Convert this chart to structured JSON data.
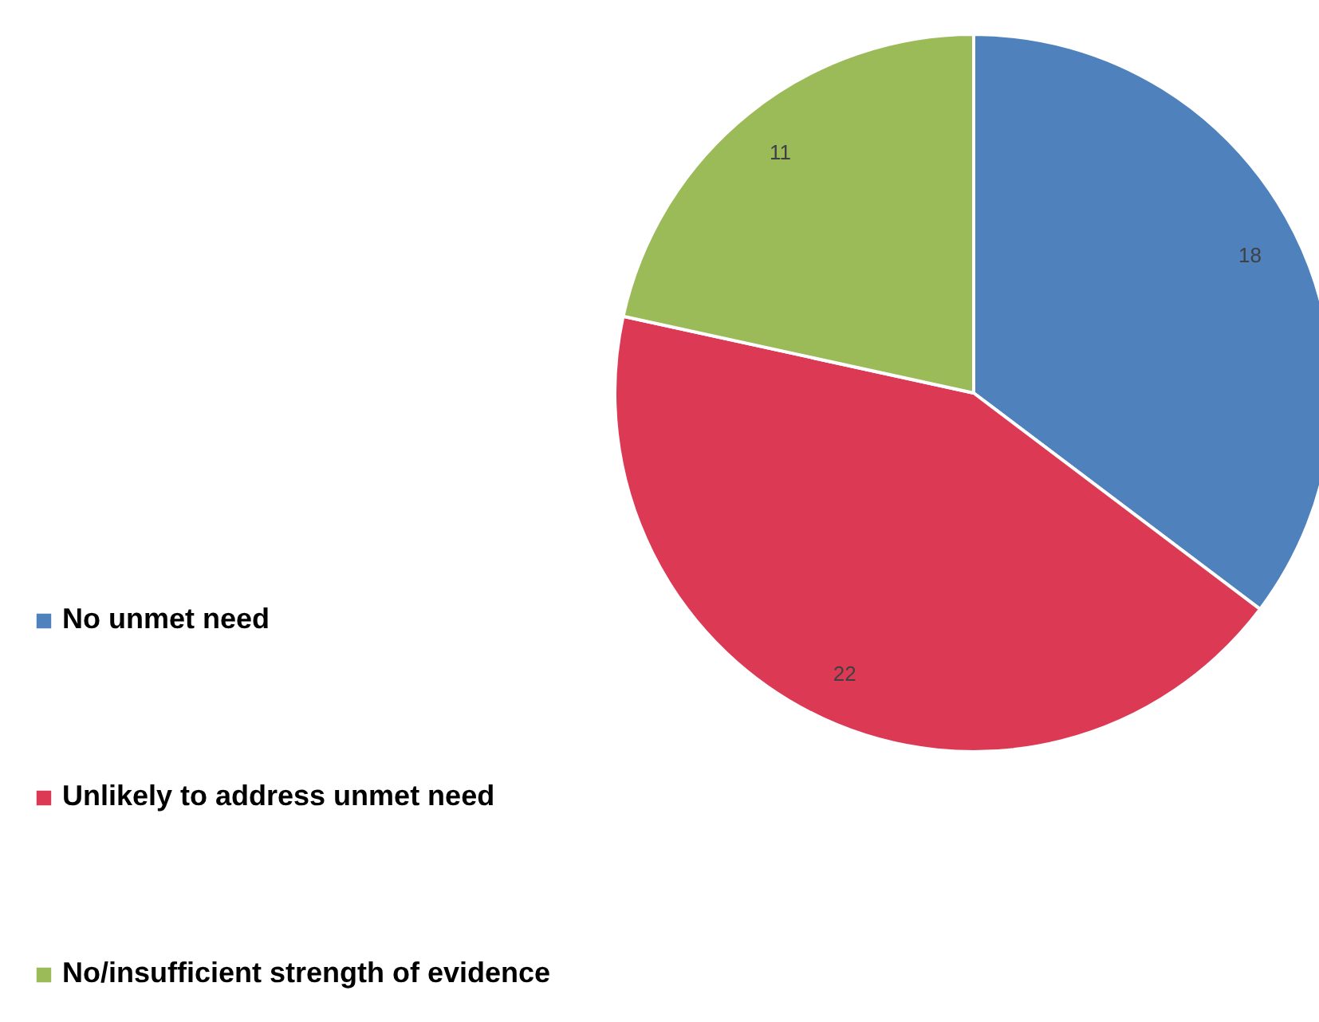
{
  "chart_data": {
    "type": "pie",
    "categories": [
      "No unmet need",
      "Unlikely to address unmet need",
      "No/insufficient strength of evidence"
    ],
    "values": [
      18,
      22,
      11
    ],
    "colors": [
      "#4f81bd",
      "#dc3955",
      "#9bbb59"
    ],
    "data_labels": true,
    "legend": "left"
  }
}
